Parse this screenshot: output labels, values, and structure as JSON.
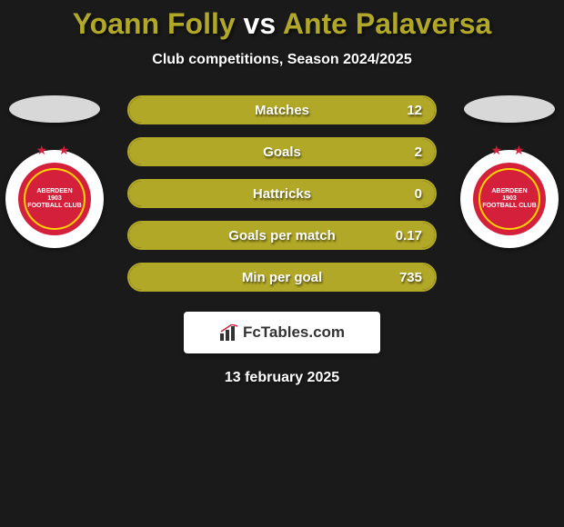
{
  "colors": {
    "background": "#1a1a1a",
    "bar_bg": "#3a3a16",
    "bar_fill": "#b2a827",
    "bar_border": "#b2a827",
    "ellipse": "#d8d8d8",
    "crest_red": "#d4203a",
    "crest_gold": "#ffd400",
    "text_white": "#ffffff"
  },
  "title": {
    "player1": "Yoann Folly",
    "vs": "vs",
    "player2": "Ante Palaversa",
    "player1_color": "#b2a827",
    "vs_color": "#ffffff",
    "player2_color": "#b2a827"
  },
  "subtitle": "Club competitions, Season 2024/2025",
  "crest": {
    "line1": "ABERDEEN",
    "line2": "FOOTBALL CLUB",
    "year": "1903"
  },
  "bars": [
    {
      "label": "Matches",
      "value": "12",
      "fill_pct": 100
    },
    {
      "label": "Goals",
      "value": "2",
      "fill_pct": 100
    },
    {
      "label": "Hattricks",
      "value": "0",
      "fill_pct": 100
    },
    {
      "label": "Goals per match",
      "value": "0.17",
      "fill_pct": 100
    },
    {
      "label": "Min per goal",
      "value": "735",
      "fill_pct": 100
    }
  ],
  "logo": "FcTables.com",
  "date": "13 february 2025"
}
